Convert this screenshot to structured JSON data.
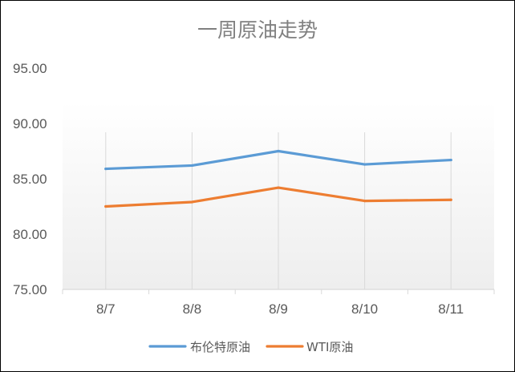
{
  "chart_data": {
    "type": "line",
    "title": "一周原油走势",
    "categories": [
      "8/7",
      "8/8",
      "8/9",
      "8/10",
      "8/11"
    ],
    "y_tick_labels": [
      "95.00",
      "90.00",
      "85.00",
      "80.00",
      "75.00"
    ],
    "ylim": [
      75,
      95
    ],
    "grid": "vertical category lines",
    "legend_position": "bottom",
    "series": [
      {
        "name": "布伦特原油",
        "color": "#5B9BD5",
        "values": [
          85.9,
          86.2,
          87.5,
          86.3,
          86.7
        ]
      },
      {
        "name": "WTI原油",
        "color": "#ED7D31",
        "values": [
          82.5,
          82.9,
          84.2,
          83.0,
          83.1
        ]
      }
    ]
  }
}
